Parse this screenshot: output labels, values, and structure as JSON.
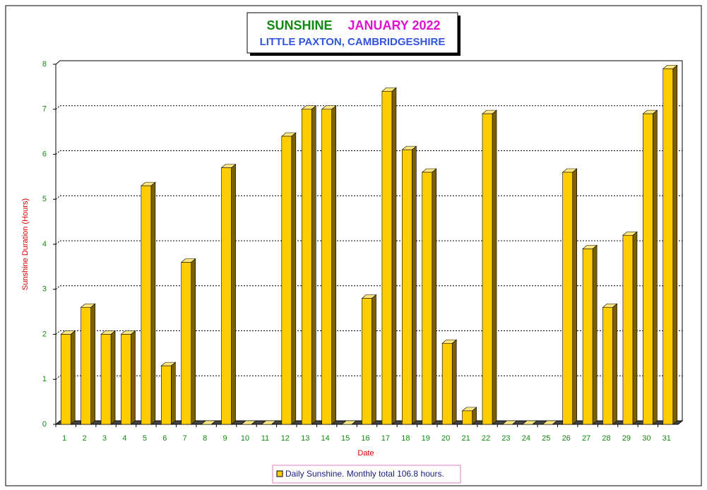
{
  "chart_data": {
    "type": "bar",
    "title_parts": [
      {
        "text": "SUNSHINE",
        "color": "#118811"
      },
      {
        "text": "JANUARY 2022",
        "color": "#e010d0"
      }
    ],
    "subtitle": "LITTLE PAXTON, CAMBRIDGESHIRE",
    "x_label": "Date",
    "y_label": "Sunshine Duration (Hours)",
    "categories": [
      "1",
      "2",
      "3",
      "4",
      "5",
      "6",
      "7",
      "8",
      "9",
      "10",
      "11",
      "12",
      "13",
      "14",
      "15",
      "16",
      "17",
      "18",
      "19",
      "20",
      "21",
      "22",
      "23",
      "24",
      "25",
      "26",
      "27",
      "28",
      "29",
      "30",
      "31"
    ],
    "series": [
      {
        "name": "Daily Sunshine. Monthly total 106.8 hours.",
        "color": "#ffcc00",
        "values": [
          2.0,
          2.6,
          2.0,
          2.0,
          5.3,
          1.3,
          3.6,
          0,
          5.7,
          0,
          0,
          6.4,
          7.0,
          7.0,
          0,
          2.8,
          7.4,
          6.1,
          5.6,
          1.8,
          0.3,
          6.9,
          0,
          0,
          0,
          5.6,
          3.9,
          2.6,
          4.2,
          6.9,
          7.9
        ]
      }
    ],
    "ylim": [
      0,
      8
    ],
    "yticks": [
      0,
      1,
      2,
      3,
      4,
      5,
      6,
      7,
      8
    ],
    "grid": true
  }
}
